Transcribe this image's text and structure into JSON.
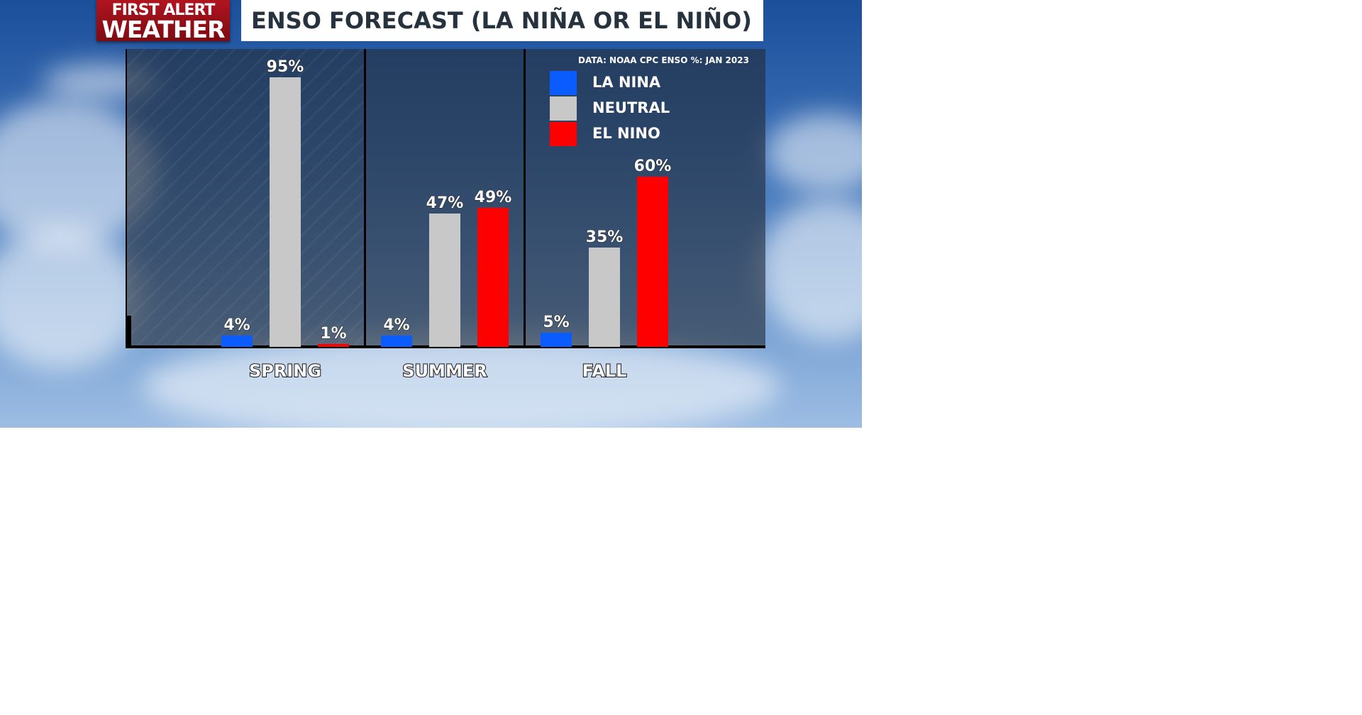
{
  "header": {
    "logo_line1": "FIRST ALERT",
    "logo_line2": "WEATHER",
    "title": "ENSO FORECAST (LA NIÑA OR EL NIÑO)"
  },
  "legend": {
    "source": "DATA: NOAA CPC ENSO %: JAN 2023",
    "items": [
      {
        "label": "LA NINA",
        "color": "#0a5cff"
      },
      {
        "label": "NEUTRAL",
        "color": "#c8c8c8"
      },
      {
        "label": "EL NINO",
        "color": "#ff0000"
      }
    ]
  },
  "chart_data": {
    "type": "bar",
    "title": "ENSO FORECAST (LA NIÑA OR EL NIÑO)",
    "categories": [
      "SPRING",
      "SUMMER",
      "FALL"
    ],
    "series": [
      {
        "name": "LA NINA",
        "color": "#0a5cff",
        "values": [
          4,
          4,
          5
        ],
        "labels": [
          "4%",
          "4%",
          "5%"
        ]
      },
      {
        "name": "NEUTRAL",
        "color": "#c8c8c8",
        "values": [
          95,
          47,
          35
        ],
        "labels": [
          "95%",
          "47%",
          "35%"
        ]
      },
      {
        "name": "EL NINO",
        "color": "#ff0000",
        "values": [
          1,
          49,
          60
        ],
        "labels": [
          "1%",
          "49%",
          "60%"
        ]
      }
    ],
    "ylim": [
      0,
      100
    ],
    "legend_position": "top-right",
    "grid": false
  }
}
